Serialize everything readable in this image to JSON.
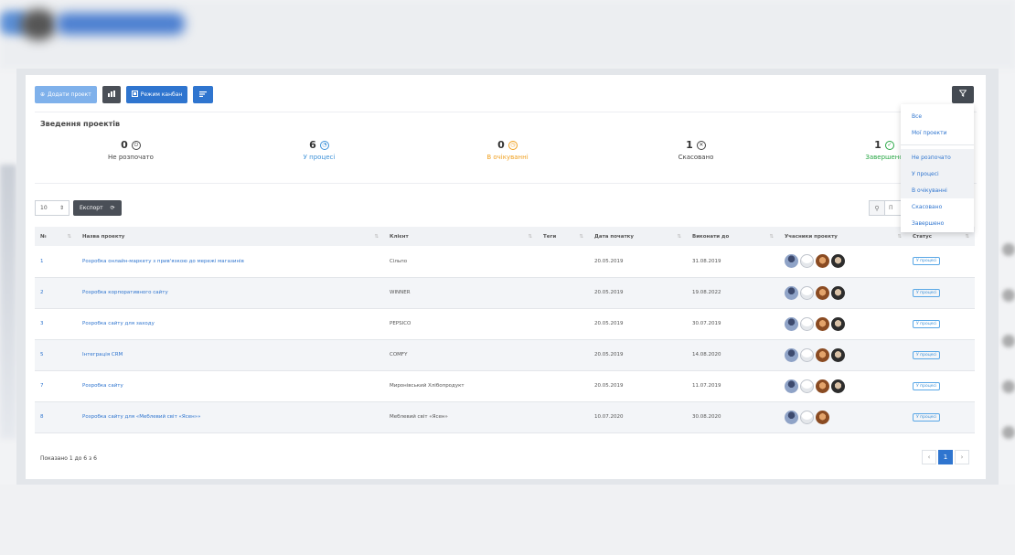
{
  "toolbar": {
    "add_project": "Додати проект",
    "kanban": "Режим канбан",
    "stats_icon": "bar-chart-icon",
    "list_icon": "list-icon",
    "filter_icon": "funnel-icon"
  },
  "summary": {
    "title": "Зведення проектів",
    "stats": [
      {
        "count": "0",
        "label": "Не розпочато",
        "icon": "⏻",
        "color": "#444444"
      },
      {
        "count": "6",
        "label": "У процесі",
        "icon": "◔",
        "color": "#3d91d8"
      },
      {
        "count": "0",
        "label": "В очікуванні",
        "icon": "◷",
        "color": "#f0a020"
      },
      {
        "count": "1",
        "label": "Скасовано",
        "icon": "✕",
        "color": "#444444"
      },
      {
        "count": "1",
        "label": "Завершено",
        "icon": "✓",
        "color": "#28a745"
      }
    ]
  },
  "controls": {
    "page_length": "10",
    "export": "Експорт",
    "search_placeholder": "П"
  },
  "table": {
    "headers": [
      "№",
      "Назва проекту",
      "Клієнт",
      "Теги",
      "Дата початку",
      "Виконати до",
      "Учасники проекту",
      "Статус"
    ],
    "rows": [
      {
        "num": "1",
        "name": "Розробка онлайн-маркету з прив'язкою до мережі магазинів",
        "client": "Сільпо",
        "start": "20.05.2019",
        "due": "31.08.2019",
        "members": 4,
        "status": "У процесі"
      },
      {
        "num": "2",
        "name": "Розробка корпоративного сайту",
        "client": "WINNER",
        "start": "20.05.2019",
        "due": "19.08.2022",
        "members": 4,
        "status": "У процесі"
      },
      {
        "num": "3",
        "name": "Розробка сайту для заходу",
        "client": "PEPSICO",
        "start": "20.05.2019",
        "due": "30.07.2019",
        "members": 4,
        "status": "У процесі"
      },
      {
        "num": "5",
        "name": "Інтеграція CRM",
        "client": "COMFY",
        "start": "20.05.2019",
        "due": "14.08.2020",
        "members": 4,
        "status": "У процесі"
      },
      {
        "num": "7",
        "name": "Розробка сайту",
        "client": "Миронівський Хлібопродукт",
        "start": "20.05.2019",
        "due": "11.07.2019",
        "members": 4,
        "status": "У процесі"
      },
      {
        "num": "8",
        "name": "Розробка сайту для «Меблевий світ «Ясен»»",
        "client": "Меблевий світ «Ясен»",
        "start": "10.07.2020",
        "due": "30.08.2020",
        "members": 3,
        "status": "У процесі"
      }
    ]
  },
  "footer": {
    "info": "Показано 1 до 6 з 6",
    "page": "1"
  },
  "filter_menu": {
    "items": [
      "Все",
      "Мої проекти",
      "Не розпочато",
      "У процесі",
      "В очікуванні",
      "Скасовано",
      "Завершено"
    ]
  }
}
